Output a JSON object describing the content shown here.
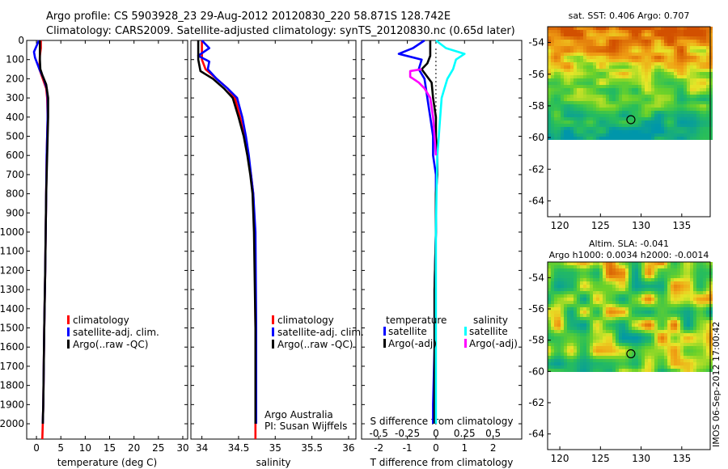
{
  "header": {
    "line1": "Argo profile: CS 5903928_23 29-Aug-2012 20120830_220 58.871S 128.742E",
    "line2": "Climatology: CARS2009. Satellite-adjusted climatology: synTS_20120830.nc (0.65d later)"
  },
  "credits": {
    "org": "Argo Australia",
    "pi": "PI: Susan Wijffels",
    "stamp": "IMOS 06-Sep-2012 17:00:42"
  },
  "colors": {
    "climatology": "#ff0000",
    "satellite": "#0000ff",
    "argo": "#000000",
    "salinity_satellite": "#00ffff",
    "salinity_argo": "#ff00ff"
  },
  "chart_data": [
    {
      "type": "line",
      "panel": "temperature",
      "xlabel": "temperature (deg C)",
      "ylabel": "",
      "xlim": [
        -2,
        31
      ],
      "ylim": [
        2080,
        0
      ],
      "xticks": [
        0,
        5,
        10,
        15,
        20,
        25,
        30
      ],
      "yticks": [
        0,
        100,
        200,
        300,
        400,
        500,
        600,
        700,
        800,
        900,
        1000,
        1100,
        1200,
        1300,
        1400,
        1500,
        1600,
        1700,
        1800,
        1900,
        2000
      ],
      "legend": [
        "climatology",
        "satellite-adj. clim.",
        "Argo(..raw -QC)"
      ],
      "legend_position": "lower-right",
      "series": [
        {
          "name": "climatology",
          "color": "#ff0000",
          "x": [
            0.9,
            0.9,
            0.7,
            0.6,
            1.3,
            2.0,
            2.2,
            2.3,
            2.2,
            2.1,
            2.0,
            1.9,
            1.8,
            1.6,
            1.5,
            1.4,
            1.3,
            1.2
          ],
          "y": [
            0,
            40,
            80,
            150,
            200,
            250,
            300,
            400,
            500,
            600,
            800,
            1000,
            1200,
            1500,
            1700,
            1900,
            2000,
            2080
          ]
        },
        {
          "name": "satellite-adj. clim.",
          "color": "#0000ff",
          "x": [
            0.5,
            -0.5,
            -0.3,
            0.6,
            1.5,
            2.1,
            2.3,
            2.3,
            2.2,
            2.1,
            2.0,
            1.9,
            1.8,
            1.6,
            1.5,
            1.4,
            1.3
          ],
          "y": [
            0,
            60,
            90,
            150,
            200,
            250,
            300,
            400,
            500,
            600,
            800,
            1000,
            1200,
            1500,
            1700,
            1900,
            2000
          ]
        },
        {
          "name": "Argo(..raw -QC)",
          "color": "#000000",
          "x": [
            0.7,
            0.7,
            0.8,
            1.2,
            2.0,
            2.4,
            2.4,
            2.3,
            2.2,
            2.1,
            2.0,
            1.9,
            1.8,
            1.6,
            1.5,
            1.4,
            1.3
          ],
          "y": [
            0,
            100,
            150,
            180,
            230,
            300,
            400,
            500,
            600,
            700,
            800,
            1000,
            1200,
            1500,
            1700,
            1900,
            2000
          ]
        }
      ]
    },
    {
      "type": "line",
      "panel": "salinity",
      "xlabel": "salinity",
      "ylabel": "",
      "xlim": [
        33.85,
        36.1
      ],
      "ylim": [
        2080,
        0
      ],
      "xticks": [
        34,
        34.5,
        35,
        35.5,
        36
      ],
      "legend": [
        "climatology",
        "satellite-adj. clim.",
        "Argo(..raw -QC)"
      ],
      "legend_position": "lower-right",
      "series": [
        {
          "name": "climatology",
          "color": "#ff0000",
          "x": [
            34.0,
            34.0,
            34.05,
            34.2,
            34.35,
            34.45,
            34.52,
            34.58,
            34.63,
            34.67,
            34.7,
            34.72,
            34.73,
            34.73,
            34.73
          ],
          "y": [
            0,
            100,
            150,
            200,
            250,
            300,
            400,
            500,
            600,
            700,
            800,
            1000,
            1500,
            2000,
            2080
          ]
        },
        {
          "name": "satellite-adj. clim.",
          "color": "#0000ff",
          "x": [
            34.0,
            34.1,
            33.95,
            34.1,
            34.08,
            34.2,
            34.35,
            34.48,
            34.55,
            34.6,
            34.64,
            34.67,
            34.7,
            34.73,
            34.74,
            34.74
          ],
          "y": [
            0,
            40,
            80,
            110,
            150,
            200,
            250,
            300,
            400,
            500,
            600,
            700,
            800,
            1000,
            1500,
            2000
          ]
        },
        {
          "name": "Argo(..raw -QC)",
          "color": "#000000",
          "x": [
            33.95,
            33.95,
            33.98,
            34.15,
            34.3,
            34.42,
            34.5,
            34.57,
            34.62,
            34.66,
            34.69,
            34.71,
            34.73,
            34.73
          ],
          "y": [
            0,
            100,
            160,
            200,
            250,
            300,
            400,
            500,
            600,
            700,
            800,
            1000,
            1500,
            2000
          ]
        }
      ]
    },
    {
      "type": "line",
      "panel": "difference",
      "xlabel": "T difference from climatology",
      "xlabel_top": "S difference from climatology",
      "ylabel": "",
      "xlim": [
        -2.6,
        3.0
      ],
      "ylim": [
        2080,
        0
      ],
      "xticks": [
        -2,
        -1,
        0,
        1,
        2
      ],
      "s_xticks": [
        -0.5,
        -0.25,
        0,
        0.25,
        0.5
      ],
      "legend_temperature": {
        "title": "temperature",
        "items": [
          "satellite",
          "Argo(-adj)"
        ]
      },
      "legend_salinity": {
        "title": "salinity",
        "items": [
          "satellite",
          "Argo(-adj)"
        ]
      },
      "legend_position": "lower-center",
      "series": [
        {
          "name": "temperature satellite",
          "color": "#0000ff",
          "x": [
            -0.4,
            -0.8,
            -1.3,
            -0.5,
            -0.6,
            -0.4,
            -0.3,
            -0.2,
            -0.1,
            -0.1,
            0.0,
            0.0,
            0.0,
            -0.05,
            -0.05,
            -0.1,
            -0.1
          ],
          "y": [
            0,
            40,
            70,
            100,
            150,
            200,
            300,
            400,
            500,
            600,
            700,
            800,
            1000,
            1300,
            1600,
            1900,
            2000
          ]
        },
        {
          "name": "temperature Argo(-adj)",
          "color": "#000000",
          "x": [
            -0.2,
            -0.2,
            -0.3,
            -0.5,
            -0.15,
            -0.1,
            0.0,
            0.0,
            0.05,
            0.05,
            0.0,
            0.0,
            -0.05,
            -0.05,
            -0.05,
            -0.05
          ],
          "y": [
            0,
            80,
            120,
            150,
            220,
            300,
            400,
            500,
            600,
            700,
            800,
            1000,
            1300,
            1600,
            1900,
            2000
          ]
        },
        {
          "name": "salinity satellite",
          "color": "#00ffff",
          "x": [
            0.0,
            0.35,
            1.0,
            0.7,
            0.6,
            0.4,
            0.3,
            0.2,
            0.15,
            0.1,
            0.05,
            0.02,
            0.0,
            0.0,
            0.0
          ],
          "y": [
            0,
            40,
            70,
            100,
            150,
            200,
            250,
            300,
            400,
            500,
            600,
            800,
            1000,
            1500,
            2000
          ]
        },
        {
          "name": "salinity Argo(-adj)",
          "color": "#ff00ff",
          "x": [
            -0.5,
            -0.9,
            -0.9,
            -0.6,
            -0.4,
            -0.2,
            -0.1,
            -0.05,
            0.0
          ],
          "y": [
            150,
            160,
            190,
            220,
            250,
            300,
            400,
            500,
            600
          ]
        }
      ]
    },
    {
      "type": "heatmap",
      "panel": "sst-map",
      "title": "sat. SST: 0.406 Argo: 0.707",
      "xlim": [
        118.5,
        138.5
      ],
      "ylim": [
        -65,
        -53
      ],
      "xticks": [
        120,
        125,
        130,
        135
      ],
      "yticks": [
        -54,
        -56,
        -58,
        -60,
        -62,
        -64
      ],
      "data_extent_lat": [
        -60,
        -53
      ],
      "marker": {
        "lon": 128.742,
        "lat": -58.871
      }
    },
    {
      "type": "heatmap",
      "panel": "sla-map",
      "title": "Altim. SLA: -0.041",
      "subtitle": "Argo h1000: 0.0034 h2000: -0.0014",
      "xlim": [
        118.5,
        138.5
      ],
      "ylim": [
        -65,
        -53
      ],
      "xticks": [
        120,
        125,
        130,
        135
      ],
      "yticks": [
        -54,
        -56,
        -58,
        -60,
        -62,
        -64
      ],
      "data_extent_lat": [
        -60,
        -53
      ],
      "marker": {
        "lon": 128.742,
        "lat": -58.871
      }
    }
  ]
}
